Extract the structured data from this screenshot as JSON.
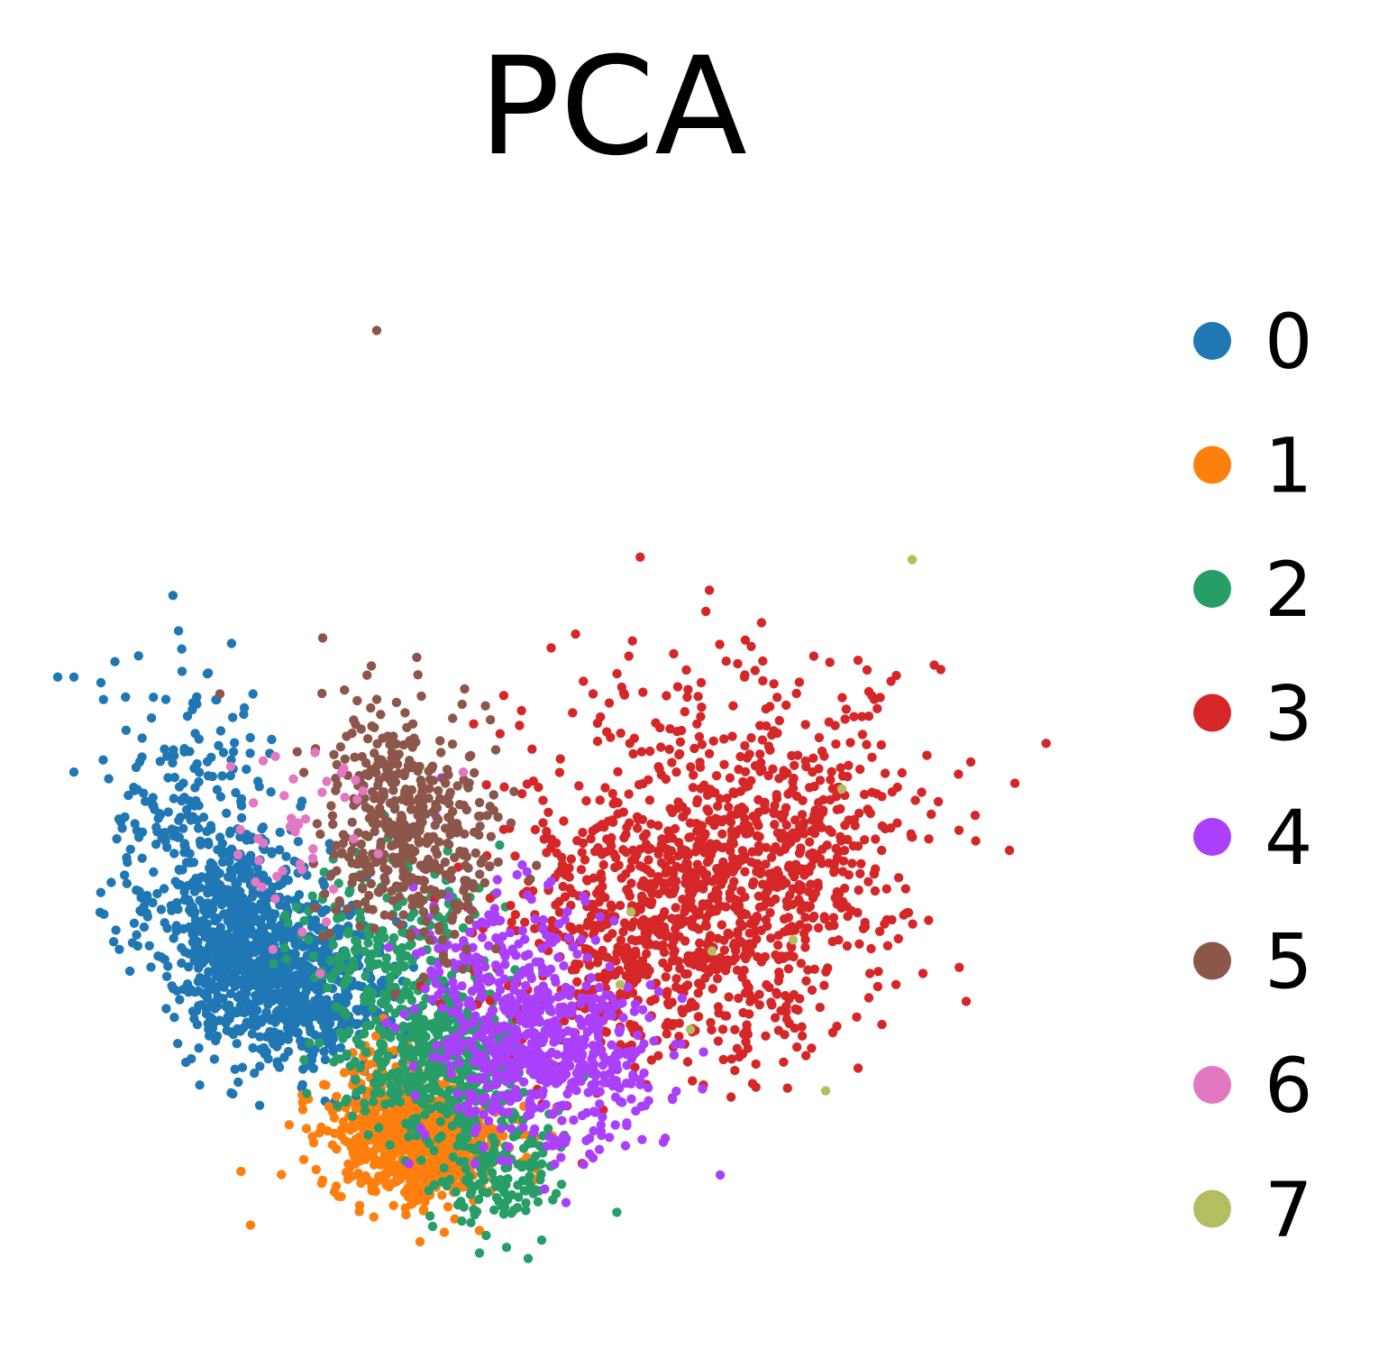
{
  "chart_data": {
    "type": "scatter",
    "title": "PCA",
    "xlabel": "",
    "ylabel": "",
    "xlim": [
      -10,
      10
    ],
    "ylim": [
      -10,
      10
    ],
    "grid": false,
    "axes_visible": false,
    "legend_placement": "right",
    "series": [
      {
        "name": "0",
        "color": "#1f77b4",
        "clusters": [
          {
            "center": [
              -6.2,
              -2.9
            ],
            "spread": [
              0.8,
              0.9
            ],
            "n": 650
          },
          {
            "center": [
              -5.0,
              -4.1
            ],
            "spread": [
              0.9,
              0.7
            ],
            "n": 520
          },
          {
            "center": [
              -7.2,
              -0.7
            ],
            "spread": [
              0.8,
              1.2
            ],
            "n": 180
          }
        ],
        "points": [
          [
            -9.6,
            1.6
          ],
          [
            -9.3,
            1.6
          ],
          [
            -8.8,
            1.5
          ],
          [
            -7.6,
            1.2
          ],
          [
            -7.2,
            0.9
          ],
          [
            -9.3,
            -0.1
          ],
          [
            -6.2,
            -0.7
          ]
        ]
      },
      {
        "name": "1",
        "color": "#ff7f0e",
        "clusters": [
          {
            "center": [
              -2.9,
              -6.8
            ],
            "spread": [
              0.8,
              0.5
            ],
            "n": 650
          },
          {
            "center": [
              -3.5,
              -5.9
            ],
            "spread": [
              0.6,
              0.5
            ],
            "n": 180
          }
        ],
        "points": [
          [
            -4.7,
            -7.4
          ],
          [
            -2.9,
            -8.5
          ],
          [
            -1.8,
            -8.3
          ]
        ]
      },
      {
        "name": "2",
        "color": "#279e68",
        "clusters": [
          {
            "center": [
              -2.4,
              -5.3
            ],
            "spread": [
              0.8,
              0.6
            ],
            "n": 450
          },
          {
            "center": [
              -3.5,
              -3.2
            ],
            "spread": [
              0.9,
              0.9
            ],
            "n": 220
          },
          {
            "center": [
              -1.5,
              -7.3
            ],
            "spread": [
              0.6,
              0.5
            ],
            "n": 150
          }
        ],
        "points": [
          [
            -1.8,
            -8.7
          ],
          [
            -1.3,
            -8.6
          ],
          [
            -0.9,
            -8.8
          ]
        ]
      },
      {
        "name": "3",
        "color": "#d62728",
        "clusters": [
          {
            "center": [
              1.8,
              -2.8
            ],
            "spread": [
              1.6,
              1.2
            ],
            "n": 900
          },
          {
            "center": [
              3.8,
              -1.3
            ],
            "spread": [
              1.4,
              1.1
            ],
            "n": 350
          },
          {
            "center": [
              2.5,
              0.3
            ],
            "spread": [
              2.0,
              1.1
            ],
            "n": 140
          }
        ],
        "points": [
          [
            0.3,
            1.3
          ],
          [
            2.3,
            1.5
          ],
          [
            3.1,
            1.6
          ],
          [
            5.2,
            1.9
          ],
          [
            5.5,
            1.2
          ],
          [
            5.4,
            0.9
          ],
          [
            8.1,
            -0.3
          ],
          [
            8.0,
            -1.5
          ],
          [
            6.4,
            -3.7
          ],
          [
            7.2,
            -4.2
          ],
          [
            5.3,
            -2.9
          ],
          [
            0.1,
            -7.1
          ]
        ]
      },
      {
        "name": "4",
        "color": "#aa40fc",
        "clusters": [
          {
            "center": [
              -0.5,
              -5.2
            ],
            "spread": [
              1.0,
              0.8
            ],
            "n": 550
          },
          {
            "center": [
              -1.4,
              -3.4
            ],
            "spread": [
              0.8,
              0.7
            ],
            "n": 150
          }
        ],
        "points": [
          [
            -0.2,
            -7.8
          ],
          [
            0.3,
            -7.0
          ],
          [
            -2.5,
            -0.2
          ],
          [
            -2.6,
            -0.9
          ]
        ]
      },
      {
        "name": "5",
        "color": "#8c564b",
        "clusters": [
          {
            "center": [
              -3.1,
              -1.4
            ],
            "spread": [
              0.8,
              0.9
            ],
            "n": 360
          },
          {
            "center": [
              -3.4,
              0.1
            ],
            "spread": [
              0.7,
              0.8
            ],
            "n": 90
          }
        ],
        "points": [
          [
            -3.7,
            7.8
          ],
          [
            -4.7,
            2.3
          ],
          [
            -3.8,
            1.8
          ],
          [
            -3.7,
            1.2
          ],
          [
            -6.6,
            1.3
          ],
          [
            -1.5,
            0.3
          ],
          [
            -2.3,
            0.4
          ]
        ]
      },
      {
        "name": "6",
        "color": "#e377c2",
        "clusters": [
          {
            "center": [
              -5.2,
              -1.3
            ],
            "spread": [
              0.7,
              0.9
            ],
            "n": 40
          }
        ],
        "points": [
          [
            -6.4,
            0.0
          ],
          [
            -5.8,
            0.1
          ],
          [
            -2.1,
            -0.1
          ]
        ]
      },
      {
        "name": "7",
        "color": "#b5bd61",
        "clusters": [],
        "points": [
          [
            6.2,
            3.7
          ],
          [
            4.9,
            -0.4
          ],
          [
            4.6,
            -5.8
          ],
          [
            1.0,
            -2.6
          ],
          [
            2.5,
            -3.3
          ],
          [
            4.0,
            -3.1
          ],
          [
            2.1,
            -4.7
          ],
          [
            0.8,
            -3.9
          ]
        ]
      }
    ]
  }
}
